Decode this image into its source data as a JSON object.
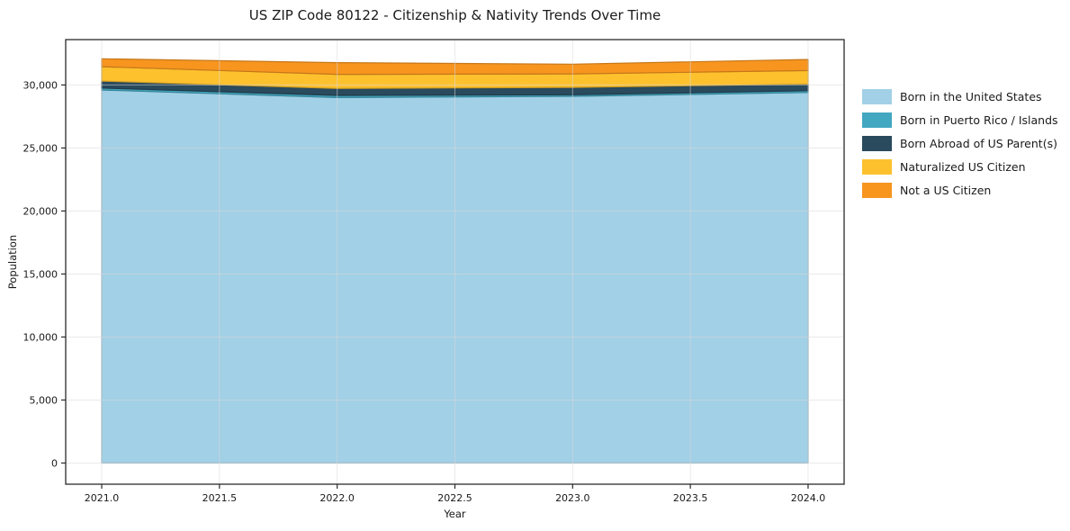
{
  "title": "US ZIP Code 80122 - Citizenship & Nativity Trends Over Time",
  "chart_data": {
    "type": "area",
    "stacked": true,
    "title": "US ZIP Code 80122 - Citizenship & Nativity Trends Over Time",
    "xlabel": "Year",
    "ylabel": "Population",
    "x": [
      2021,
      2022,
      2023,
      2024
    ],
    "series": [
      {
        "name": "Born in the United States",
        "color": "#a2d0e6",
        "values": [
          29600,
          29000,
          29100,
          29400
        ]
      },
      {
        "name": "Born in Puerto Rico / Islands",
        "color": "#42a7c0",
        "values": [
          160,
          170,
          120,
          140
        ]
      },
      {
        "name": "Born Abroad of US Parent(s)",
        "color": "#2a4a5d",
        "values": [
          550,
          550,
          590,
          530
        ]
      },
      {
        "name": "Naturalized US Citizen",
        "color": "#fdc12e",
        "values": [
          1140,
          1120,
          1070,
          1070
        ]
      },
      {
        "name": "Not a US Citizen",
        "color": "#f7951f",
        "values": [
          630,
          930,
          770,
          880
        ]
      }
    ],
    "x_ticks": [
      {
        "value": 2021.0,
        "label": "2021.0"
      },
      {
        "value": 2021.5,
        "label": "2021.5"
      },
      {
        "value": 2022.0,
        "label": "2022.0"
      },
      {
        "value": 2022.5,
        "label": "2022.5"
      },
      {
        "value": 2023.0,
        "label": "2023.0"
      },
      {
        "value": 2023.5,
        "label": "2023.5"
      },
      {
        "value": 2024.0,
        "label": "2024.0"
      }
    ],
    "y_ticks": [
      {
        "value": 0,
        "label": "0"
      },
      {
        "value": 5000,
        "label": "5,000"
      },
      {
        "value": 10000,
        "label": "10,000"
      },
      {
        "value": 15000,
        "label": "15,000"
      },
      {
        "value": 20000,
        "label": "20,000"
      },
      {
        "value": 25000,
        "label": "25,000"
      },
      {
        "value": 30000,
        "label": "30,000"
      }
    ],
    "xlim": [
      2020.847,
      2024.153
    ],
    "ylim": [
      -1680,
      33600
    ],
    "grid": true,
    "legend_position": "right"
  },
  "colors": {
    "grid": "#d9d9d9",
    "spine": "#2b2b2b",
    "tick_text": "#1a1a1a",
    "background": "#ffffff"
  }
}
